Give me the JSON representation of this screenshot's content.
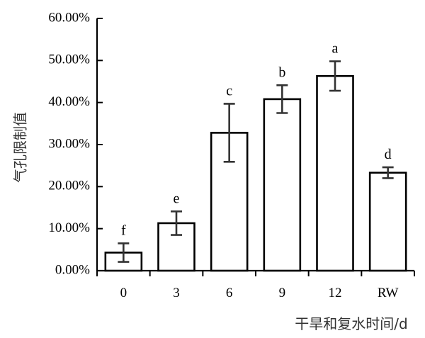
{
  "chart_data": {
    "type": "bar",
    "xlabel": "干旱和复水时间/d",
    "ylabel": "气孔限制值",
    "ylim": [
      0,
      60
    ],
    "yticks": [
      0,
      10,
      20,
      30,
      40,
      50,
      60
    ],
    "ytick_labels": [
      "0.00%",
      "10.00%",
      "20.00%",
      "30.00%",
      "40.00%",
      "50.00%",
      "60.00%"
    ],
    "categories": [
      "0",
      "3",
      "6",
      "9",
      "12",
      "RW"
    ],
    "values": [
      4.3,
      11.3,
      32.8,
      40.8,
      46.3,
      23.3
    ],
    "error": [
      2.2,
      2.8,
      6.9,
      3.3,
      3.5,
      1.3
    ],
    "significance": [
      "f",
      "e",
      "c",
      "b",
      "a",
      "d"
    ],
    "grid": false,
    "legend": "none"
  }
}
